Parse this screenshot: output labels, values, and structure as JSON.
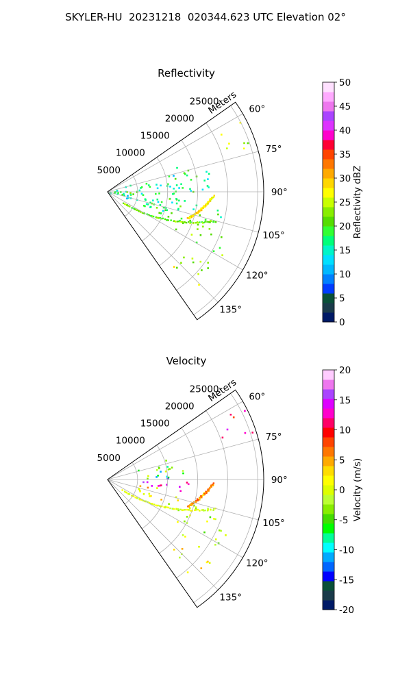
{
  "suptitle": "SKYLER-HU  20231218  020344.623 UTC Elevation 02°",
  "panels": [
    {
      "title": "Reflectivity",
      "range_label": "Meters",
      "colorbar": {
        "label": "Reflectivity dBZ",
        "ticks": [
          "0",
          "5",
          "10",
          "15",
          "20",
          "25",
          "30",
          "35",
          "40",
          "45",
          "50"
        ],
        "colors": [
          "#001a66",
          "#1a3b4a",
          "#0a5038",
          "#003cff",
          "#0080ff",
          "#00b8ff",
          "#00e0ff",
          "#00f5c8",
          "#00ff7a",
          "#32ff32",
          "#55dd00",
          "#88ee00",
          "#c8ff00",
          "#ffff00",
          "#ffd700",
          "#ffaa00",
          "#ff7700",
          "#ff4400",
          "#ff0033",
          "#ff00cc",
          "#dd33ff",
          "#aa44ff",
          "#ee77ee",
          "#ffaaff",
          "#ffe0ff"
        ]
      },
      "chart_data": {
        "type": "polar-sector",
        "field": "reflectivity",
        "units": "dBZ",
        "range_ticks_m": [
          5000,
          10000,
          15000,
          20000,
          25000
        ],
        "azimuth_ticks_deg": [
          60,
          75,
          90,
          105,
          120,
          135
        ],
        "azimuth_range_deg": [
          55,
          145
        ],
        "max_range_m": 26000,
        "clim": [
          0,
          50
        ],
        "echo_regions": [
          {
            "az": [
              60,
              72
            ],
            "r": [
              20000,
              25500
            ],
            "value": 25
          },
          {
            "az": [
              70,
              90
            ],
            "r": [
              9000,
              20000
            ],
            "value": 18
          },
          {
            "az": [
              72,
              112
            ],
            "r": [
              0,
              12000
            ],
            "value": 15
          },
          {
            "az": [
              88,
              112
            ],
            "r": [
              2000,
              13000
            ],
            "value": 19
          },
          {
            "az": [
              95,
              110
            ],
            "r": [
              10000,
              20000
            ],
            "value": 20
          },
          {
            "az": [
              105,
              120
            ],
            "r": [
              12000,
              22000
            ],
            "value": 21
          },
          {
            "az": [
              125,
              140
            ],
            "r": [
              15000,
              22000
            ],
            "value": 24
          }
        ],
        "linear_features": [
          {
            "from": {
              "az": 92,
              "r": 17500
            },
            "to": {
              "az": 108,
              "r": 14000
            },
            "value": 28
          },
          {
            "from": {
              "az": 125,
              "r": 3000
            },
            "to": {
              "az": 105,
              "r": 18500
            },
            "value": 22
          }
        ]
      }
    },
    {
      "title": "Velocity",
      "range_label": "Meters",
      "colorbar": {
        "label": "Velocity (m/s)",
        "ticks": [
          "-20",
          "-15",
          "-10",
          "-5",
          "0",
          "5",
          "10",
          "15",
          "20"
        ],
        "colors": [
          "#001a66",
          "#1a3b4a",
          "#0a5038",
          "#0000ff",
          "#0066ff",
          "#00aaff",
          "#00ffff",
          "#00ff99",
          "#00ff00",
          "#44dd00",
          "#88ee00",
          "#bbff33",
          "#ddff00",
          "#ffff00",
          "#ffdd00",
          "#ffaa00",
          "#ff7700",
          "#ff4400",
          "#ff0000",
          "#ff0066",
          "#ff00cc",
          "#dd00ff",
          "#aa44ff",
          "#ee77ee",
          "#ffccff"
        ]
      },
      "chart_data": {
        "type": "polar-sector",
        "field": "radial_velocity",
        "units": "m/s",
        "range_ticks_m": [
          5000,
          10000,
          15000,
          20000,
          25000
        ],
        "azimuth_ticks_deg": [
          60,
          75,
          90,
          105,
          120,
          135
        ],
        "azimuth_range_deg": [
          55,
          145
        ],
        "max_range_m": 26000,
        "clim": [
          -20,
          20
        ],
        "echo_regions": [
          {
            "az": [
              60,
              72
            ],
            "r": [
              20000,
              25500
            ],
            "value": 11
          },
          {
            "az": [
              70,
              88
            ],
            "r": [
              5000,
              13000
            ],
            "value": -4
          },
          {
            "az": [
              80,
              90
            ],
            "r": [
              8000,
              12000
            ],
            "value": -11
          },
          {
            "az": [
              91,
              99
            ],
            "r": [
              2000,
              14000
            ],
            "value": 13
          },
          {
            "az": [
              99,
              112
            ],
            "r": [
              3000,
              13000
            ],
            "value": 3
          },
          {
            "az": [
              105,
              122
            ],
            "r": [
              10000,
              22000
            ],
            "value": -1
          },
          {
            "az": [
              125,
              140
            ],
            "r": [
              15000,
              22000
            ],
            "value": 2
          }
        ],
        "linear_features": [
          {
            "from": {
              "az": 92,
              "r": 17500
            },
            "to": {
              "az": 108,
              "r": 14000
            },
            "value": 6
          },
          {
            "from": {
              "az": 125,
              "r": 3000
            },
            "to": {
              "az": 105,
              "r": 18500
            },
            "value": 0
          }
        ]
      }
    }
  ]
}
